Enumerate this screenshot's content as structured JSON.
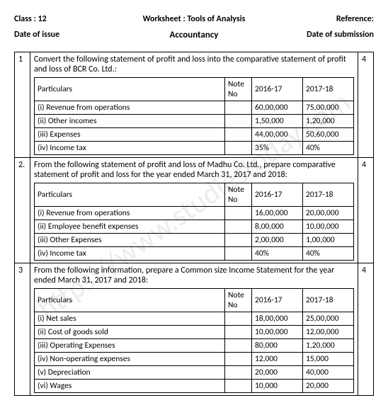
{
  "header": {
    "class_label": "Class : 12",
    "title": "Worksheet : Tools of Analysis",
    "reference": "Reference:",
    "date_issue": "Date of issue",
    "subject": "Accountancy",
    "date_submission": "Date of submission"
  },
  "watermark": "https://www.studiestoday.com",
  "col_headers": {
    "particulars": "Particulars",
    "note": "Note No",
    "y1": "2016-17",
    "y2": "2017-18"
  },
  "q1": {
    "no": "1",
    "marks": "4",
    "text": "Convert the following statement of profit and loss into the comparative statement of profit and loss of BCR Co. Ltd.:",
    "rows": [
      {
        "p": "(i) Revenue from operations",
        "n": "",
        "y1": "60,00,000",
        "y2": "75,00,000"
      },
      {
        "p": "(ii) Other incomes",
        "n": "",
        "y1": "1,50,000",
        "y2": "1,20,000"
      },
      {
        "p": "(iii) Expenses",
        "n": "",
        "y1": "44,00,000",
        "y2": "50,60,000"
      },
      {
        "p": "(iv) Income tax",
        "n": "",
        "y1": "35%",
        "y2": "40%"
      }
    ]
  },
  "q2": {
    "no": "2.",
    "marks": "4",
    "text": "From the following statement of profit and loss of Madhu Co. Ltd., prepare comparative statement of profit and loss for the year ended March 31, 2017 and 2018:",
    "rows": [
      {
        "p": "(i) Revenue from operations",
        "n": "",
        "y1": "16,00,000",
        "y2": "20,00,000"
      },
      {
        "p": "(ii) Employee benefit expenses",
        "n": "",
        "y1": "8,00,000",
        "y2": "10,00,000"
      },
      {
        "p": "(iii) Other Expenses",
        "n": "",
        "y1": "2,00,000",
        "y2": "1,00,000"
      },
      {
        "p": "(iv) Income tax",
        "n": "",
        "y1": "40%",
        "y2": "40%"
      }
    ]
  },
  "q3": {
    "no": "3",
    "marks": "4",
    "text": "From the following information, prepare a Common size Income Statement for the year ended March 31, 2017 and 2018:",
    "rows": [
      {
        "p": "(i) Net sales",
        "n": "",
        "y1": "18,00,000",
        "y2": "25,00,000"
      },
      {
        "p": "(ii) Cost of goods sold",
        "n": "",
        "y1": "10,00,000",
        "y2": "12,00,000"
      },
      {
        "p": "(iii) Operating Expenses",
        "n": "",
        "y1": "80,000",
        "y2": "1,20,000"
      },
      {
        "p": "(iv) Non-operating expenses",
        "n": "",
        "y1": "12,000",
        "y2": "15,000"
      },
      {
        "p": "(v) Depreciation",
        "n": "",
        "y1": "20,000",
        "y2": "40,000"
      },
      {
        "p": "(vi) Wages",
        "n": "",
        "y1": "10,000",
        "y2": "20,000"
      }
    ]
  }
}
